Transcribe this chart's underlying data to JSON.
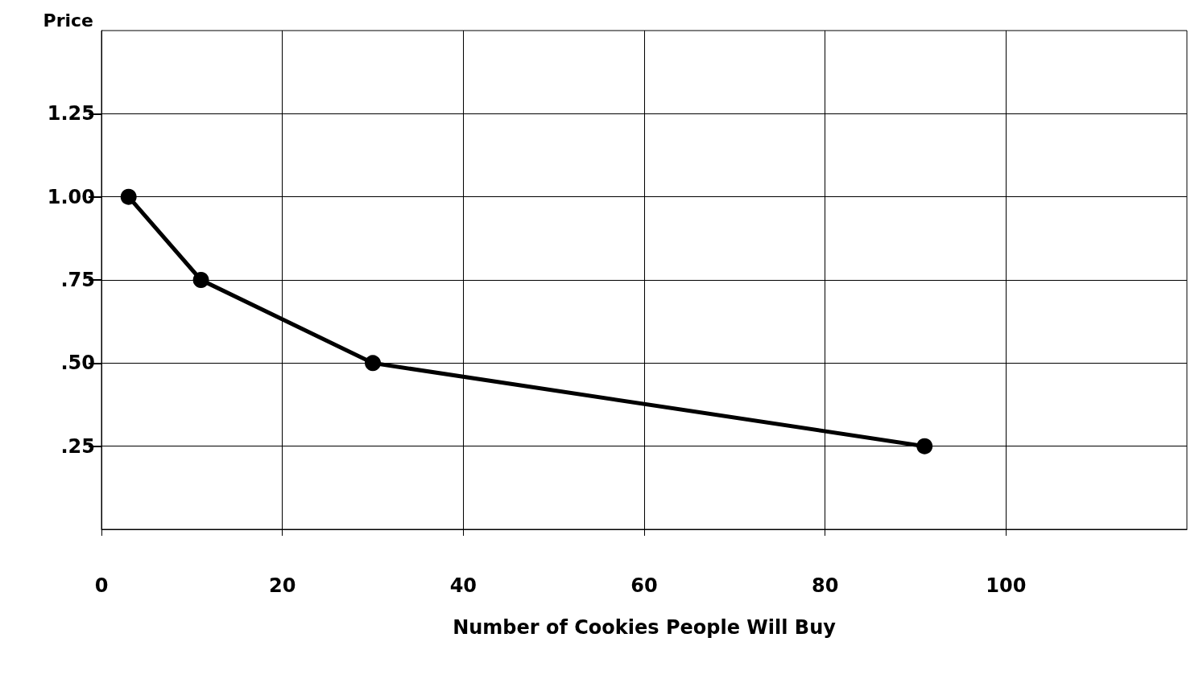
{
  "chart_data": {
    "type": "line",
    "xlabel": "Number of Cookies People Will Buy",
    "ylabel": "Price",
    "x": [
      3,
      11,
      30,
      91
    ],
    "series": [
      {
        "color": "#000000",
        "values": [
          1.0,
          0.75,
          0.5,
          0.25
        ]
      }
    ],
    "xlim": [
      0,
      120
    ],
    "xticks": [
      0,
      20,
      40,
      60,
      80,
      100
    ],
    "ylim": [
      0,
      1.5
    ],
    "yticks": [
      {
        "value": 0.25,
        "label": ".25"
      },
      {
        "value": 0.5,
        "label": ".50"
      },
      {
        "value": 0.75,
        "label": ".75"
      },
      {
        "value": 1.0,
        "label": "1.00"
      },
      {
        "value": 1.25,
        "label": "1.25"
      }
    ],
    "grid": true,
    "marker": "circle",
    "line_style": "solid"
  }
}
